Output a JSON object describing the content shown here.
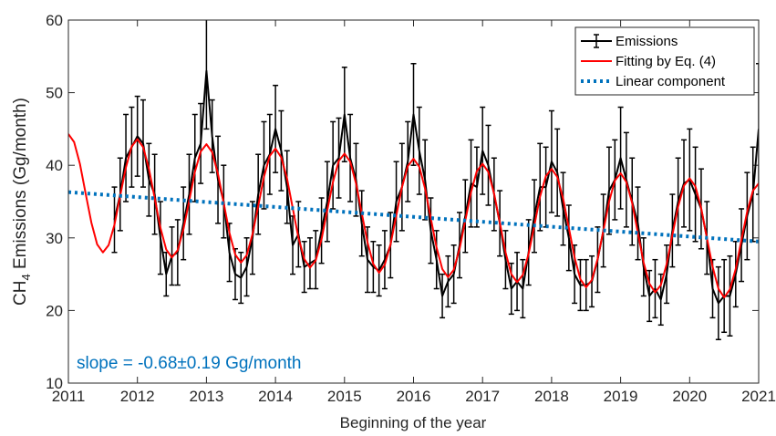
{
  "chart_data": {
    "type": "line",
    "xlabel": "Beginning of the year",
    "ylabel": [
      "CH",
      "4",
      " Emissions (Gg/month)"
    ],
    "annotation": "slope = -0.68±0.19 Gg/month",
    "xlim": [
      2011,
      2021
    ],
    "xticks": [
      2011,
      2012,
      2013,
      2014,
      2015,
      2016,
      2017,
      2018,
      2019,
      2020,
      2021
    ],
    "ylim": [
      10,
      60
    ],
    "yticks": [
      10,
      20,
      30,
      40,
      50,
      60
    ],
    "legend": "top-right",
    "x": [
      2011,
      2011.083,
      2011.167,
      2011.25,
      2011.333,
      2011.417,
      2011.5,
      2011.583,
      2011.667,
      2011.75,
      2011.833,
      2011.917,
      2012,
      2012.083,
      2012.167,
      2012.25,
      2012.333,
      2012.417,
      2012.5,
      2012.583,
      2012.667,
      2012.75,
      2012.833,
      2012.917,
      2013,
      2013.083,
      2013.167,
      2013.25,
      2013.333,
      2013.417,
      2013.5,
      2013.583,
      2013.667,
      2013.75,
      2013.833,
      2013.917,
      2014,
      2014.083,
      2014.167,
      2014.25,
      2014.333,
      2014.417,
      2014.5,
      2014.583,
      2014.667,
      2014.75,
      2014.833,
      2014.917,
      2015,
      2015.083,
      2015.167,
      2015.25,
      2015.333,
      2015.417,
      2015.5,
      2015.583,
      2015.667,
      2015.75,
      2015.833,
      2015.917,
      2016,
      2016.083,
      2016.167,
      2016.25,
      2016.333,
      2016.417,
      2016.5,
      2016.583,
      2016.667,
      2016.75,
      2016.833,
      2016.917,
      2017,
      2017.083,
      2017.167,
      2017.25,
      2017.333,
      2017.417,
      2017.5,
      2017.583,
      2017.667,
      2017.75,
      2017.833,
      2017.917,
      2018,
      2018.083,
      2018.167,
      2018.25,
      2018.333,
      2018.417,
      2018.5,
      2018.583,
      2018.667,
      2018.75,
      2018.833,
      2018.917,
      2019,
      2019.083,
      2019.167,
      2019.25,
      2019.333,
      2019.417,
      2019.5,
      2019.583,
      2019.667,
      2019.75,
      2019.833,
      2019.917,
      2020,
      2020.083,
      2020.167,
      2020.25,
      2020.333,
      2020.417,
      2020.5,
      2020.583,
      2020.667,
      2020.75,
      2020.833,
      2020.917,
      2021
    ],
    "series": [
      {
        "name": "Emissions",
        "color": "#000000",
        "line_style": "solid",
        "values": [
          null,
          null,
          null,
          null,
          null,
          null,
          null,
          null,
          32.5,
          36,
          41,
          42.5,
          44,
          43,
          38,
          36,
          30,
          25,
          27.5,
          28,
          32,
          36,
          41,
          43,
          53,
          44,
          38,
          35,
          28,
          25,
          24.5,
          26,
          30,
          36,
          40,
          41.5,
          45,
          42,
          37,
          29,
          30.5,
          26,
          26.5,
          27,
          31,
          35,
          40,
          41,
          47,
          41,
          38,
          32,
          27,
          26,
          25.5,
          27,
          29,
          35,
          37,
          40.5,
          47,
          42,
          38,
          31,
          27,
          22,
          24,
          25,
          29,
          33,
          37.5,
          37,
          42,
          40,
          36,
          32,
          27,
          23,
          24,
          23,
          28,
          33,
          37,
          37,
          40.5,
          39,
          34,
          30,
          25,
          23.5,
          23.5,
          24,
          27,
          31,
          36.5,
          38,
          41,
          38,
          35,
          32,
          26,
          22,
          23,
          21.5,
          25,
          31,
          35,
          37.5,
          38,
          36,
          34,
          30,
          23,
          21,
          22,
          22,
          25,
          29,
          33,
          36,
          45
        ],
        "errors": [
          null,
          null,
          null,
          null,
          null,
          null,
          null,
          null,
          4.5,
          5,
          6,
          5.5,
          5.5,
          6,
          5,
          5.5,
          5,
          3,
          4,
          4.5,
          5,
          5.5,
          6,
          5.5,
          8,
          5,
          6,
          5,
          4,
          3.5,
          3.5,
          4,
          5,
          5.5,
          6,
          5.5,
          6,
          5.5,
          5,
          4,
          4.5,
          3.5,
          3.5,
          4,
          4.5,
          5.5,
          6,
          5.5,
          6.5,
          6,
          5,
          4.5,
          4.5,
          3.5,
          3.5,
          4,
          4.5,
          5.5,
          6,
          5.5,
          7,
          6,
          5.5,
          4.5,
          4,
          3,
          3.5,
          4,
          4.5,
          5,
          6,
          5.5,
          6,
          5.5,
          5,
          4.5,
          4,
          3.5,
          4,
          4,
          4.5,
          5,
          6,
          5.5,
          7,
          6,
          5,
          4.5,
          4,
          3.5,
          3.5,
          3.5,
          4.5,
          5,
          6,
          5.5,
          7,
          6.5,
          6,
          5,
          4,
          3.5,
          4,
          3.5,
          4,
          5,
          6,
          6,
          7,
          6.5,
          5.5,
          5,
          4,
          5,
          5,
          5.5,
          4.5,
          5,
          6,
          6.5,
          9
        ]
      },
      {
        "name": "Fitting by Eq. (4)",
        "color": "#ff0000",
        "line_style": "solid",
        "values": [
          44.3,
          43.2,
          40.2,
          36.1,
          32.1,
          29.1,
          28.0,
          29.0,
          31.8,
          35.8,
          39.7,
          42.6,
          43.6,
          42.5,
          39.5,
          35.5,
          31.4,
          28.4,
          27.3,
          28.3,
          31.2,
          35.1,
          39.1,
          41.9,
          42.9,
          41.8,
          38.8,
          34.8,
          30.7,
          27.7,
          26.6,
          27.6,
          30.5,
          34.4,
          38.4,
          41.3,
          42.3,
          41.1,
          38.2,
          34.1,
          30.0,
          27.1,
          25.9,
          26.9,
          29.8,
          33.8,
          37.7,
          40.6,
          41.6,
          40.5,
          37.5,
          33.4,
          29.4,
          26.4,
          25.2,
          26.3,
          29.1,
          33.1,
          37.0,
          39.9,
          40.9,
          39.8,
          36.8,
          32.7,
          28.7,
          25.7,
          24.6,
          25.6,
          28.5,
          32.4,
          36.3,
          39.2,
          40.2,
          39.1,
          36.1,
          32.1,
          28.0,
          25.0,
          23.9,
          24.9,
          27.8,
          31.7,
          35.7,
          38.5,
          39.5,
          38.4,
          35.4,
          31.4,
          27.3,
          24.3,
          23.2,
          24.2,
          27.1,
          31.0,
          35.0,
          37.9,
          38.9,
          37.7,
          34.8,
          30.7,
          26.6,
          23.7,
          22.5,
          23.5,
          26.4,
          30.4,
          34.3,
          37.2,
          38.2,
          37.1,
          34.1,
          30.0,
          26.0,
          23.0,
          21.8,
          22.9,
          25.7,
          29.7,
          33.6,
          36.5,
          37.5
        ]
      },
      {
        "name": "Linear component",
        "color": "#0072bd",
        "line_style": "dotted",
        "x": [
          2011,
          2021
        ],
        "values": [
          36.3,
          29.5
        ]
      }
    ]
  }
}
